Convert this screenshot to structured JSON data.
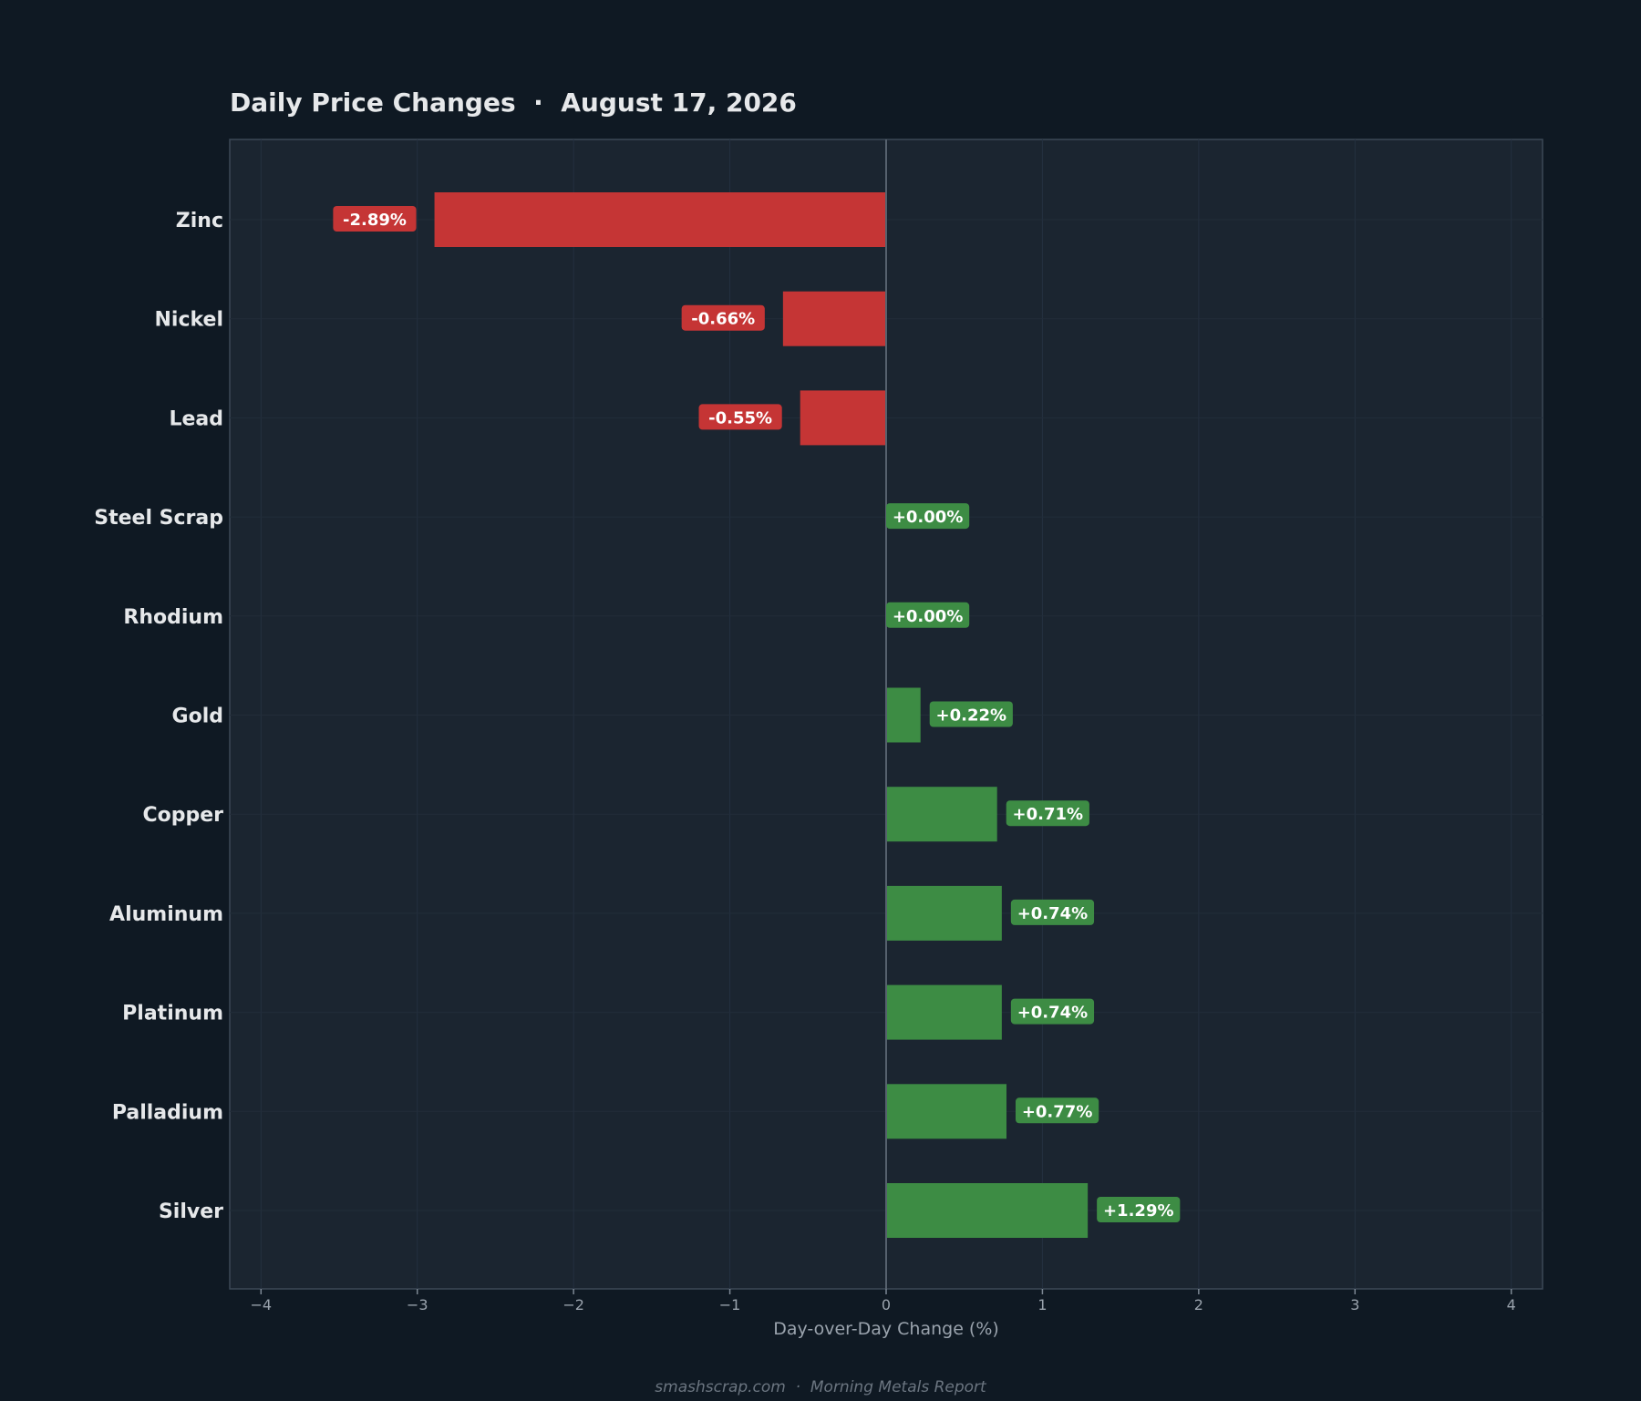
{
  "chart_data": {
    "type": "bar",
    "orientation": "horizontal",
    "title": "Daily Price Changes  ·  August 17, 2026",
    "xlabel": "Day-over-Day Change (%)",
    "ylabel": "",
    "xlim": [
      -4.2,
      4.2
    ],
    "xticks": [
      -4,
      -3,
      -2,
      -1,
      0,
      1,
      2,
      3,
      4
    ],
    "xtick_labels": [
      "−4",
      "−3",
      "−2",
      "−1",
      "0",
      "1",
      "2",
      "3",
      "4"
    ],
    "grid": true,
    "categories": [
      "Zinc",
      "Nickel",
      "Lead",
      "Steel Scrap",
      "Rhodium",
      "Gold",
      "Copper",
      "Aluminum",
      "Platinum",
      "Palladium",
      "Silver"
    ],
    "values": [
      -2.89,
      -0.66,
      -0.55,
      0.0,
      0.0,
      0.22,
      0.71,
      0.74,
      0.74,
      0.77,
      1.29
    ],
    "value_labels": [
      "-2.89%",
      "-0.66%",
      "-0.55%",
      "+0.00%",
      "+0.00%",
      "+0.22%",
      "+0.71%",
      "+0.74%",
      "+0.74%",
      "+0.77%",
      "+1.29%"
    ],
    "colors": {
      "negative": "#c53535",
      "positive": "#3d8c44",
      "plot_bg": "#1b2530",
      "page_bg": "#0f1923",
      "frame": "#3c4856"
    }
  },
  "footer": "smashscrap.com  ·  Morning Metals Report"
}
